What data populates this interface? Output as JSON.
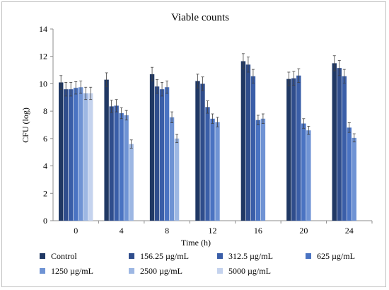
{
  "chart_data": {
    "type": "bar",
    "title": "Viable counts",
    "xlabel": "Time (h)",
    "ylabel": "CFU (log)",
    "ylim": [
      0,
      14
    ],
    "yticks": [
      0,
      2,
      4,
      6,
      8,
      10,
      12,
      14
    ],
    "grid": false,
    "legend_position": "bottom",
    "categories": [
      "0",
      "4",
      "8",
      "12",
      "16",
      "20",
      "24"
    ],
    "series": [
      {
        "name": "Control",
        "color": "#203864",
        "values": [
          10.1,
          10.3,
          10.7,
          10.2,
          11.65,
          10.35,
          11.5
        ],
        "errors": [
          0.5,
          0.5,
          0.5,
          0.5,
          0.55,
          0.5,
          0.55
        ]
      },
      {
        "name": "156.25 µg/mL",
        "color": "#2f4d8c",
        "values": [
          9.6,
          8.35,
          9.8,
          10.0,
          11.4,
          10.4,
          11.15
        ],
        "errors": [
          0.5,
          0.45,
          0.5,
          0.5,
          0.55,
          0.5,
          0.55
        ]
      },
      {
        "name": "312.5 µg/mL",
        "color": "#3a5ea8",
        "values": [
          9.6,
          8.4,
          9.6,
          8.3,
          10.55,
          10.6,
          10.55
        ],
        "errors": [
          0.5,
          0.45,
          0.5,
          0.45,
          0.5,
          0.5,
          0.5
        ]
      },
      {
        "name": "625 µg/mL",
        "color": "#4a73c2",
        "values": [
          9.7,
          7.85,
          9.75,
          7.45,
          7.35,
          7.1,
          6.8
        ],
        "errors": [
          0.45,
          0.4,
          0.45,
          0.35,
          0.35,
          0.35,
          0.35
        ]
      },
      {
        "name": "1250 µg/mL",
        "color": "#6f93d4",
        "values": [
          9.75,
          7.7,
          7.55,
          7.2,
          7.45,
          6.6,
          6.05
        ],
        "errors": [
          0.45,
          0.35,
          0.4,
          0.35,
          0.35,
          0.3,
          0.3
        ]
      },
      {
        "name": "2500 µg/mL",
        "color": "#9db7e3",
        "values": [
          9.3,
          5.6,
          6.0,
          null,
          null,
          null,
          null
        ],
        "errors": [
          0.45,
          0.3,
          0.3,
          null,
          null,
          null,
          null
        ]
      },
      {
        "name": "5000 µg/mL",
        "color": "#c5d3ee",
        "values": [
          9.3,
          null,
          null,
          null,
          null,
          null,
          null
        ],
        "errors": [
          0.45,
          null,
          null,
          null,
          null,
          null,
          null
        ]
      }
    ]
  }
}
